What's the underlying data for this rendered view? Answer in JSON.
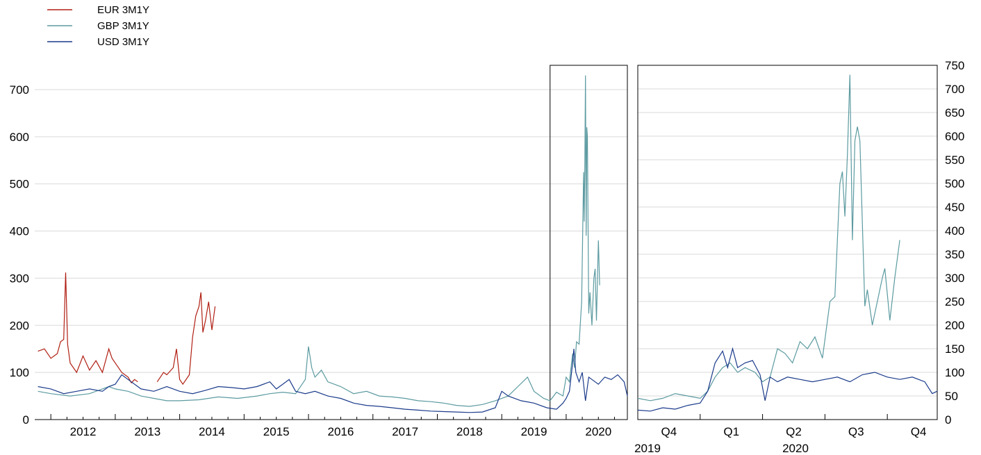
{
  "chart_data": [
    {
      "type": "line",
      "title": "",
      "xlabel": "",
      "ylabel": "",
      "ylim": [
        0,
        740
      ],
      "y_ticks": [
        0,
        100,
        200,
        300,
        400,
        500,
        600,
        700
      ],
      "x_tick_labels": [
        "2012",
        "2013",
        "2014",
        "2015",
        "2016",
        "2017",
        "2018",
        "2019",
        "2020"
      ],
      "xlim": [
        2011.75,
        2020.95
      ],
      "grid": true,
      "legend_position": "top-left",
      "highlight_box": [
        2019.75,
        2020.95
      ],
      "series": [
        {
          "name": "EUR 3M1Y",
          "color": "#b01e12",
          "points": [
            [
              2011.8,
              145
            ],
            [
              2011.9,
              150
            ],
            [
              2012.0,
              130
            ],
            [
              2012.1,
              140
            ],
            [
              2012.15,
              165
            ],
            [
              2012.2,
              170
            ],
            [
              2012.23,
              312
            ],
            [
              2012.26,
              160
            ],
            [
              2012.3,
              120
            ],
            [
              2012.4,
              100
            ],
            [
              2012.5,
              135
            ],
            [
              2012.6,
              105
            ],
            [
              2012.7,
              125
            ],
            [
              2012.8,
              100
            ],
            [
              2012.9,
              150
            ],
            [
              2012.95,
              130
            ],
            [
              2013.0,
              120
            ],
            [
              2013.1,
              100
            ],
            [
              2013.2,
              90
            ],
            [
              2013.25,
              78
            ],
            [
              2013.3,
              85
            ],
            [
              2013.35,
              80
            ]
          ]
        },
        {
          "name": "EUR 3M1Y",
          "color": "#b01e12",
          "points": [
            [
              2013.65,
              80
            ],
            [
              2013.7,
              90
            ],
            [
              2013.75,
              100
            ],
            [
              2013.8,
              95
            ],
            [
              2013.9,
              110
            ],
            [
              2013.95,
              150
            ],
            [
              2014.0,
              85
            ],
            [
              2014.05,
              75
            ],
            [
              2014.15,
              95
            ],
            [
              2014.2,
              175
            ],
            [
              2014.25,
              220
            ],
            [
              2014.3,
              240
            ],
            [
              2014.33,
              270
            ],
            [
              2014.36,
              185
            ],
            [
              2014.4,
              210
            ],
            [
              2014.45,
              250
            ],
            [
              2014.5,
              190
            ],
            [
              2014.55,
              240
            ]
          ]
        },
        {
          "name": "GBP 3M1Y",
          "color": "#5b9aa0",
          "points": [
            [
              2011.8,
              60
            ],
            [
              2012.0,
              55
            ],
            [
              2012.3,
              50
            ],
            [
              2012.6,
              55
            ],
            [
              2012.9,
              70
            ],
            [
              2013.0,
              65
            ],
            [
              2013.2,
              60
            ],
            [
              2013.4,
              50
            ],
            [
              2013.6,
              45
            ],
            [
              2013.8,
              40
            ],
            [
              2014.0,
              40
            ],
            [
              2014.3,
              42
            ],
            [
              2014.6,
              48
            ],
            [
              2014.9,
              45
            ],
            [
              2015.2,
              50
            ],
            [
              2015.4,
              55
            ],
            [
              2015.6,
              58
            ],
            [
              2015.8,
              55
            ],
            [
              2015.95,
              85
            ],
            [
              2016.0,
              155
            ],
            [
              2016.05,
              110
            ],
            [
              2016.1,
              90
            ],
            [
              2016.2,
              105
            ],
            [
              2016.3,
              80
            ],
            [
              2016.5,
              70
            ],
            [
              2016.7,
              55
            ],
            [
              2016.9,
              60
            ],
            [
              2017.1,
              50
            ],
            [
              2017.3,
              48
            ],
            [
              2017.5,
              45
            ],
            [
              2017.7,
              40
            ],
            [
              2017.9,
              38
            ],
            [
              2018.1,
              35
            ],
            [
              2018.3,
              30
            ],
            [
              2018.5,
              28
            ],
            [
              2018.7,
              32
            ],
            [
              2018.9,
              40
            ],
            [
              2019.1,
              50
            ],
            [
              2019.25,
              70
            ],
            [
              2019.4,
              90
            ],
            [
              2019.5,
              60
            ],
            [
              2019.65,
              45
            ],
            [
              2019.75,
              40
            ],
            [
              2019.85,
              58
            ],
            [
              2019.95,
              50
            ],
            [
              2020.0,
              90
            ],
            [
              2020.05,
              80
            ],
            [
              2020.1,
              140
            ],
            [
              2020.13,
              110
            ],
            [
              2020.16,
              165
            ],
            [
              2020.2,
              160
            ],
            [
              2020.24,
              250
            ],
            [
              2020.27,
              525
            ],
            [
              2020.28,
              420
            ],
            [
              2020.29,
              545
            ],
            [
              2020.3,
              730
            ],
            [
              2020.31,
              390
            ],
            [
              2020.32,
              620
            ],
            [
              2020.33,
              600
            ],
            [
              2020.35,
              225
            ],
            [
              2020.37,
              270
            ],
            [
              2020.4,
              200
            ],
            [
              2020.43,
              300
            ],
            [
              2020.45,
              320
            ],
            [
              2020.47,
              210
            ],
            [
              2020.5,
              380
            ],
            [
              2020.52,
              285
            ]
          ]
        },
        {
          "name": "USD 3M1Y",
          "color": "#1a3a8a",
          "points": [
            [
              2011.8,
              70
            ],
            [
              2012.0,
              65
            ],
            [
              2012.2,
              55
            ],
            [
              2012.4,
              60
            ],
            [
              2012.6,
              65
            ],
            [
              2012.8,
              60
            ],
            [
              2012.9,
              70
            ],
            [
              2013.0,
              75
            ],
            [
              2013.1,
              95
            ],
            [
              2013.2,
              85
            ],
            [
              2013.4,
              65
            ],
            [
              2013.6,
              60
            ],
            [
              2013.8,
              70
            ],
            [
              2014.0,
              60
            ],
            [
              2014.2,
              55
            ],
            [
              2014.4,
              62
            ],
            [
              2014.6,
              70
            ],
            [
              2014.8,
              68
            ],
            [
              2015.0,
              65
            ],
            [
              2015.2,
              70
            ],
            [
              2015.4,
              80
            ],
            [
              2015.5,
              65
            ],
            [
              2015.6,
              75
            ],
            [
              2015.7,
              85
            ],
            [
              2015.8,
              60
            ],
            [
              2015.95,
              55
            ],
            [
              2016.1,
              60
            ],
            [
              2016.3,
              50
            ],
            [
              2016.5,
              45
            ],
            [
              2016.7,
              35
            ],
            [
              2016.9,
              30
            ],
            [
              2017.1,
              28
            ],
            [
              2017.3,
              25
            ],
            [
              2017.5,
              22
            ],
            [
              2017.7,
              20
            ],
            [
              2017.9,
              18
            ],
            [
              2018.1,
              17
            ],
            [
              2018.3,
              16
            ],
            [
              2018.5,
              15
            ],
            [
              2018.7,
              16
            ],
            [
              2018.9,
              25
            ],
            [
              2019.0,
              60
            ],
            [
              2019.1,
              50
            ],
            [
              2019.3,
              40
            ],
            [
              2019.5,
              35
            ],
            [
              2019.7,
              25
            ],
            [
              2019.85,
              22
            ],
            [
              2019.95,
              35
            ],
            [
              2020.0,
              45
            ],
            [
              2020.05,
              60
            ],
            [
              2020.1,
              120
            ],
            [
              2020.12,
              150
            ],
            [
              2020.15,
              100
            ],
            [
              2020.2,
              80
            ],
            [
              2020.25,
              100
            ],
            [
              2020.3,
              40
            ],
            [
              2020.35,
              90
            ],
            [
              2020.4,
              85
            ],
            [
              2020.5,
              75
            ],
            [
              2020.6,
              90
            ],
            [
              2020.7,
              85
            ],
            [
              2020.8,
              95
            ],
            [
              2020.9,
              80
            ],
            [
              2020.95,
              50
            ]
          ]
        }
      ]
    },
    {
      "type": "line",
      "title": "",
      "xlabel": "",
      "ylabel": "",
      "ylim": [
        0,
        750
      ],
      "y_ticks": [
        0,
        50,
        100,
        150,
        200,
        250,
        300,
        350,
        400,
        450,
        500,
        550,
        600,
        650,
        700,
        750
      ],
      "xlim": [
        2019.75,
        2020.95
      ],
      "x_tick_labels": [
        "Q4",
        "Q1",
        "Q2",
        "Q3",
        "Q4"
      ],
      "x_year_labels": [
        "2019",
        "2020"
      ],
      "grid": true,
      "series": [
        {
          "name": "GBP 3M1Y",
          "color": "#5b9aa0",
          "points": [
            [
              2019.75,
              45
            ],
            [
              2019.8,
              40
            ],
            [
              2019.85,
              45
            ],
            [
              2019.9,
              55
            ],
            [
              2019.95,
              50
            ],
            [
              2020.0,
              45
            ],
            [
              2020.03,
              60
            ],
            [
              2020.06,
              90
            ],
            [
              2020.09,
              110
            ],
            [
              2020.12,
              120
            ],
            [
              2020.15,
              100
            ],
            [
              2020.18,
              110
            ],
            [
              2020.22,
              100
            ],
            [
              2020.25,
              80
            ],
            [
              2020.28,
              90
            ],
            [
              2020.31,
              150
            ],
            [
              2020.34,
              140
            ],
            [
              2020.37,
              120
            ],
            [
              2020.4,
              165
            ],
            [
              2020.43,
              150
            ],
            [
              2020.46,
              175
            ],
            [
              2020.49,
              130
            ],
            [
              2020.52,
              250
            ],
            [
              2020.54,
              260
            ],
            [
              2020.56,
              500
            ],
            [
              2020.57,
              525
            ],
            [
              2020.58,
              430
            ],
            [
              2020.59,
              560
            ],
            [
              2020.6,
              730
            ],
            [
              2020.61,
              380
            ],
            [
              2020.62,
              590
            ],
            [
              2020.63,
              620
            ],
            [
              2020.64,
              590
            ],
            [
              2020.66,
              240
            ],
            [
              2020.67,
              275
            ],
            [
              2020.69,
              200
            ],
            [
              2020.71,
              250
            ],
            [
              2020.73,
              300
            ],
            [
              2020.74,
              320
            ],
            [
              2020.76,
              210
            ],
            [
              2020.78,
              300
            ],
            [
              2020.8,
              380
            ]
          ]
        },
        {
          "name": "USD 3M1Y",
          "color": "#1a3a8a",
          "points": [
            [
              2019.75,
              20
            ],
            [
              2019.8,
              18
            ],
            [
              2019.85,
              25
            ],
            [
              2019.9,
              22
            ],
            [
              2019.95,
              30
            ],
            [
              2020.0,
              35
            ],
            [
              2020.03,
              60
            ],
            [
              2020.06,
              120
            ],
            [
              2020.09,
              145
            ],
            [
              2020.11,
              110
            ],
            [
              2020.13,
              150
            ],
            [
              2020.15,
              110
            ],
            [
              2020.18,
              120
            ],
            [
              2020.21,
              125
            ],
            [
              2020.24,
              95
            ],
            [
              2020.26,
              40
            ],
            [
              2020.28,
              90
            ],
            [
              2020.31,
              80
            ],
            [
              2020.35,
              90
            ],
            [
              2020.4,
              85
            ],
            [
              2020.45,
              80
            ],
            [
              2020.5,
              85
            ],
            [
              2020.55,
              90
            ],
            [
              2020.6,
              80
            ],
            [
              2020.65,
              95
            ],
            [
              2020.7,
              100
            ],
            [
              2020.75,
              90
            ],
            [
              2020.8,
              85
            ],
            [
              2020.85,
              90
            ],
            [
              2020.9,
              80
            ],
            [
              2020.93,
              55
            ],
            [
              2020.95,
              60
            ]
          ]
        }
      ]
    }
  ]
}
